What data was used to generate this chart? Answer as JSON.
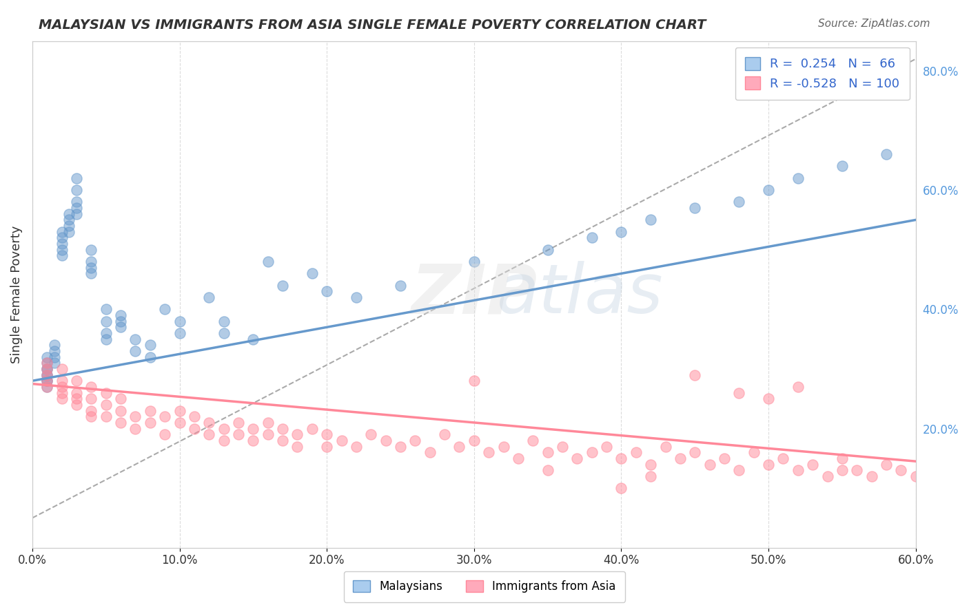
{
  "title": "MALAYSIAN VS IMMIGRANTS FROM ASIA SINGLE FEMALE POVERTY CORRELATION CHART",
  "source": "Source: ZipAtlas.com",
  "xlabel_ticks": [
    "0.0%",
    "10.0%",
    "20.0%",
    "30.0%",
    "40.0%",
    "50.0%",
    "60.0%"
  ],
  "ylabel_right_ticks": [
    "20.0%",
    "40.0%",
    "60.0%",
    "80.0%"
  ],
  "ylabel_label": "Single Female Poverty",
  "xlim": [
    0.0,
    0.6
  ],
  "ylim": [
    0.0,
    0.85
  ],
  "blue_color": "#6699CC",
  "pink_color": "#FF8899",
  "blue_fill": "#AACCEE",
  "pink_fill": "#FFAABB",
  "legend_R1": "R =  0.254",
  "legend_N1": "N =  66",
  "legend_R2": "R = -0.528",
  "legend_N2": "N = 100",
  "blue_scatter_x": [
    0.01,
    0.01,
    0.01,
    0.01,
    0.01,
    0.01,
    0.01,
    0.01,
    0.01,
    0.015,
    0.015,
    0.015,
    0.015,
    0.02,
    0.02,
    0.02,
    0.02,
    0.02,
    0.025,
    0.025,
    0.025,
    0.025,
    0.03,
    0.03,
    0.03,
    0.03,
    0.03,
    0.04,
    0.04,
    0.04,
    0.04,
    0.05,
    0.05,
    0.05,
    0.05,
    0.06,
    0.06,
    0.06,
    0.07,
    0.07,
    0.08,
    0.08,
    0.09,
    0.1,
    0.1,
    0.12,
    0.13,
    0.13,
    0.15,
    0.16,
    0.17,
    0.19,
    0.2,
    0.22,
    0.25,
    0.3,
    0.35,
    0.38,
    0.4,
    0.42,
    0.45,
    0.48,
    0.5,
    0.52,
    0.55,
    0.58
  ],
  "blue_scatter_y": [
    0.27,
    0.28,
    0.29,
    0.3,
    0.31,
    0.32,
    0.28,
    0.29,
    0.3,
    0.34,
    0.33,
    0.32,
    0.31,
    0.5,
    0.52,
    0.53,
    0.51,
    0.49,
    0.55,
    0.56,
    0.54,
    0.53,
    0.58,
    0.57,
    0.56,
    0.6,
    0.62,
    0.5,
    0.48,
    0.46,
    0.47,
    0.4,
    0.38,
    0.36,
    0.35,
    0.37,
    0.39,
    0.38,
    0.35,
    0.33,
    0.34,
    0.32,
    0.4,
    0.38,
    0.36,
    0.42,
    0.38,
    0.36,
    0.35,
    0.48,
    0.44,
    0.46,
    0.43,
    0.42,
    0.44,
    0.48,
    0.5,
    0.52,
    0.53,
    0.55,
    0.57,
    0.58,
    0.6,
    0.62,
    0.64,
    0.66
  ],
  "pink_scatter_x": [
    0.01,
    0.01,
    0.01,
    0.01,
    0.01,
    0.02,
    0.02,
    0.02,
    0.02,
    0.02,
    0.03,
    0.03,
    0.03,
    0.03,
    0.04,
    0.04,
    0.04,
    0.04,
    0.05,
    0.05,
    0.05,
    0.06,
    0.06,
    0.06,
    0.07,
    0.07,
    0.08,
    0.08,
    0.09,
    0.09,
    0.1,
    0.1,
    0.11,
    0.11,
    0.12,
    0.12,
    0.13,
    0.13,
    0.14,
    0.14,
    0.15,
    0.15,
    0.16,
    0.16,
    0.17,
    0.17,
    0.18,
    0.18,
    0.19,
    0.2,
    0.2,
    0.21,
    0.22,
    0.23,
    0.24,
    0.25,
    0.26,
    0.27,
    0.28,
    0.29,
    0.3,
    0.31,
    0.32,
    0.33,
    0.34,
    0.35,
    0.36,
    0.37,
    0.38,
    0.39,
    0.4,
    0.41,
    0.42,
    0.43,
    0.44,
    0.45,
    0.46,
    0.47,
    0.48,
    0.49,
    0.5,
    0.51,
    0.52,
    0.53,
    0.54,
    0.55,
    0.56,
    0.57,
    0.58,
    0.59,
    0.6,
    0.5,
    0.52,
    0.45,
    0.48,
    0.55,
    0.42,
    0.4,
    0.35,
    0.3
  ],
  "pink_scatter_y": [
    0.27,
    0.29,
    0.31,
    0.28,
    0.3,
    0.26,
    0.28,
    0.3,
    0.25,
    0.27,
    0.24,
    0.26,
    0.28,
    0.25,
    0.23,
    0.25,
    0.27,
    0.22,
    0.24,
    0.22,
    0.26,
    0.23,
    0.21,
    0.25,
    0.22,
    0.2,
    0.23,
    0.21,
    0.22,
    0.19,
    0.21,
    0.23,
    0.2,
    0.22,
    0.19,
    0.21,
    0.2,
    0.18,
    0.21,
    0.19,
    0.2,
    0.18,
    0.19,
    0.21,
    0.18,
    0.2,
    0.19,
    0.17,
    0.2,
    0.19,
    0.17,
    0.18,
    0.17,
    0.19,
    0.18,
    0.17,
    0.18,
    0.16,
    0.19,
    0.17,
    0.18,
    0.16,
    0.17,
    0.15,
    0.18,
    0.16,
    0.17,
    0.15,
    0.16,
    0.17,
    0.15,
    0.16,
    0.14,
    0.17,
    0.15,
    0.16,
    0.14,
    0.15,
    0.13,
    0.16,
    0.14,
    0.15,
    0.13,
    0.14,
    0.12,
    0.15,
    0.13,
    0.12,
    0.14,
    0.13,
    0.12,
    0.25,
    0.27,
    0.29,
    0.26,
    0.13,
    0.12,
    0.1,
    0.13,
    0.28
  ],
  "blue_line_x": [
    0.0,
    0.6
  ],
  "blue_line_y": [
    0.28,
    0.55
  ],
  "pink_line_x": [
    0.0,
    0.6
  ],
  "pink_line_y": [
    0.275,
    0.145
  ],
  "dash_line_x": [
    0.0,
    0.6
  ],
  "dash_line_y": [
    0.05,
    0.82
  ],
  "background_color": "#FFFFFF",
  "grid_color": "#CCCCCC",
  "watermark": "ZIPatlas",
  "watermark_color": "#DDDDDD"
}
